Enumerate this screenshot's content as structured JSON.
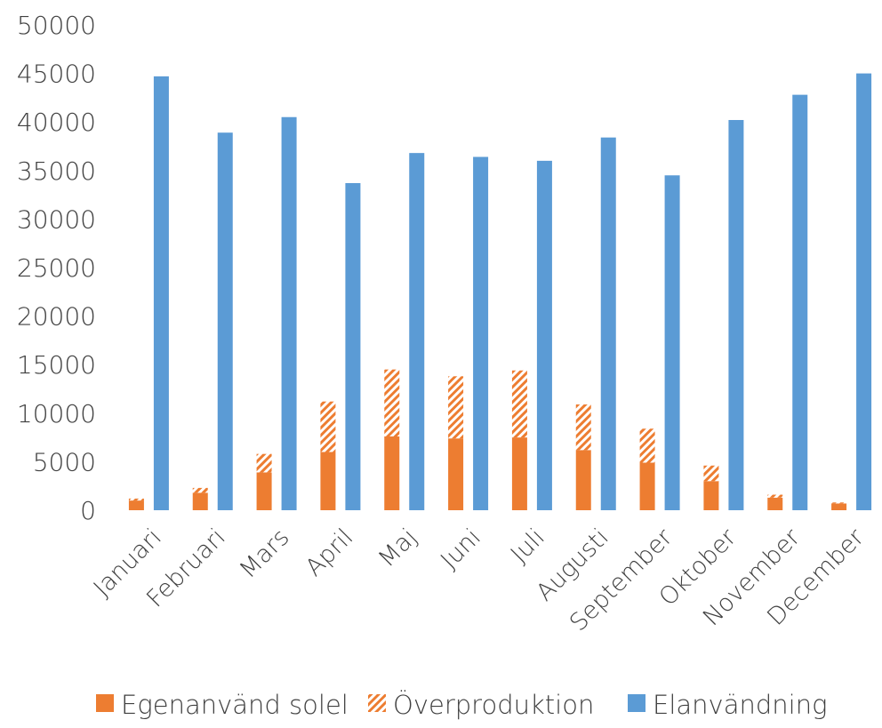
{
  "chart_data": {
    "type": "bar",
    "categories": [
      "Januari",
      "Februari",
      "Mars",
      "April",
      "Maj",
      "Juni",
      "Juli",
      "Augusti",
      "September",
      "Oktober",
      "November",
      "December"
    ],
    "series": [
      {
        "name": "Egenanvänd solel",
        "stack": "solar",
        "color": "#ED7D31",
        "pattern": "solid",
        "values": [
          1000,
          1800,
          3900,
          6000,
          7600,
          7400,
          7500,
          6200,
          4900,
          3000,
          1300,
          700
        ]
      },
      {
        "name": "Överproduktion",
        "stack": "solar",
        "color": "#ED7D31",
        "pattern": "diagonal-hatch",
        "values": [
          200,
          500,
          1900,
          5200,
          6900,
          6400,
          6900,
          4700,
          3500,
          1600,
          300,
          100
        ]
      },
      {
        "name": "Elanvändning",
        "stack": "use",
        "color": "#5B9BD5",
        "pattern": "solid",
        "values": [
          44700,
          38900,
          40500,
          33700,
          36800,
          36400,
          36000,
          38400,
          34500,
          40200,
          42800,
          45000
        ]
      }
    ],
    "y_ticks": [
      "0",
      "5000",
      "10000",
      "15000",
      "20000",
      "25000",
      "30000",
      "35000",
      "40000",
      "45000",
      "50000"
    ],
    "ylim": [
      0,
      50000
    ],
    "grid": false,
    "legend_position": "bottom"
  }
}
